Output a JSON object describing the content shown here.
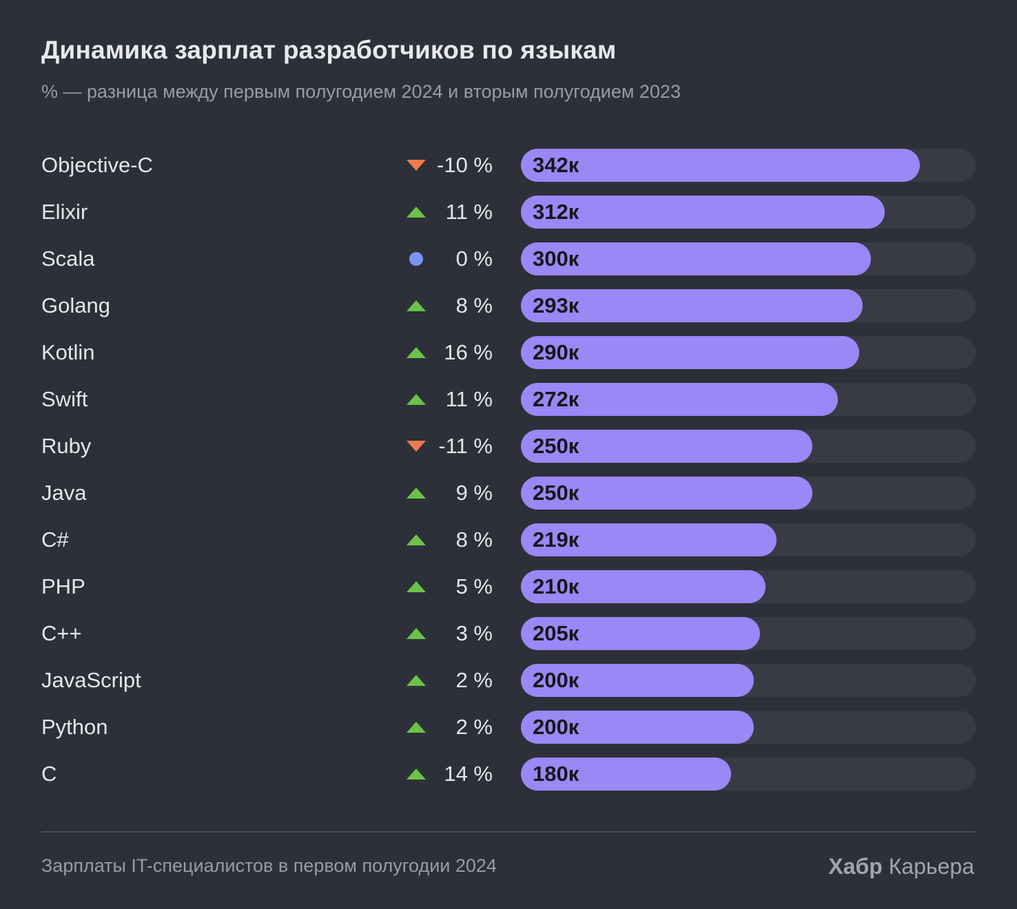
{
  "header": {
    "title": "Динамика зарплат разработчиков по языкам",
    "subtitle": "% — разница между первым полугодием 2024 и вторым полугодием 2023"
  },
  "footer": {
    "note": "Зарплаты IT-специалистов в первом полугодии 2024",
    "brand_bold": "Хабр",
    "brand_regular": "Карьера"
  },
  "colors": {
    "background": "#2d3038",
    "bar": "#9b87f5",
    "track": "#383b44",
    "up": "#6cc24a",
    "down": "#f07a4e",
    "neutral": "#7b96f0"
  },
  "chart_data": {
    "type": "bar",
    "orientation": "horizontal",
    "title": "Динамика зарплат разработчиков по языкам",
    "subtitle": "% — разница между первым полугодием 2024 и вторым полугодием 2023",
    "xlim": [
      0,
      390
    ],
    "grid": false,
    "categories": [
      "Objective-C",
      "Elixir",
      "Scala",
      "Golang",
      "Kotlin",
      "Swift",
      "Ruby",
      "Java",
      "C#",
      "PHP",
      "C++",
      "JavaScript",
      "Python",
      "C"
    ],
    "values": [
      342,
      312,
      300,
      293,
      290,
      272,
      250,
      250,
      219,
      210,
      205,
      200,
      200,
      180
    ],
    "value_labels": [
      "342к",
      "312к",
      "300к",
      "293к",
      "290к",
      "272к",
      "250к",
      "250к",
      "219к",
      "210к",
      "205к",
      "200к",
      "200к",
      "180к"
    ],
    "change_percent": [
      -10,
      11,
      0,
      8,
      16,
      11,
      -11,
      9,
      8,
      5,
      3,
      2,
      2,
      14
    ],
    "change_labels": [
      "-10 %",
      "11 %",
      "0 %",
      "8 %",
      "16 %",
      "11 %",
      "-11 %",
      "9 %",
      "8 %",
      "5 %",
      "3 %",
      "2 %",
      "2 %",
      "14 %"
    ],
    "change_direction": [
      "down",
      "up",
      "flat",
      "up",
      "up",
      "up",
      "down",
      "up",
      "up",
      "up",
      "up",
      "up",
      "up",
      "up"
    ]
  }
}
